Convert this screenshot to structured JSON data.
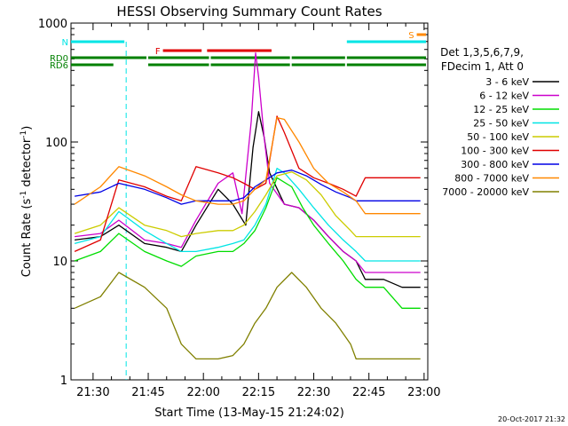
{
  "chart_data": {
    "type": "line",
    "title": "HESSI Observing Summary Count Rates",
    "xlabel": "Start Time (13-May-15 21:24:02)",
    "ylabel_main": "Count Rate (s",
    "ylabel_sup1": "-1",
    "ylabel_mid": " detector",
    "ylabel_sup2": "-1",
    "ylabel_end": ")",
    "y_scale": "log",
    "ylim": [
      1,
      1000
    ],
    "xlim_minutes": [
      0,
      97
    ],
    "y_ticks": [
      {
        "label": "1",
        "value": 1
      },
      {
        "label": "10",
        "value": 10
      },
      {
        "label": "100",
        "value": 100
      },
      {
        "label": "1000",
        "value": 1000
      }
    ],
    "x_ticks": [
      {
        "label": "21:30",
        "minutes": 6
      },
      {
        "label": "21:45",
        "minutes": 21
      },
      {
        "label": "22:00",
        "minutes": 36
      },
      {
        "label": "22:15",
        "minutes": 51
      },
      {
        "label": "22:30",
        "minutes": 66
      },
      {
        "label": "22:45",
        "minutes": 81
      },
      {
        "label": "23:00",
        "minutes": 96
      }
    ],
    "legend_header": [
      "Det 1,3,5,6,7,9,",
      "FDecim 1, Att 0"
    ],
    "series": [
      {
        "name": "3 - 6 keV",
        "color": "#000000",
        "x": [
          1,
          8,
          13,
          20,
          26,
          30,
          34,
          40,
          44,
          47.5,
          49.5,
          51,
          52.5,
          54,
          58,
          62,
          66,
          70,
          74,
          77.5,
          80,
          85,
          90,
          95
        ],
        "y": [
          15,
          16,
          20,
          14,
          13,
          12,
          20,
          40,
          30,
          20,
          90,
          180,
          110,
          55,
          30,
          28,
          22,
          16,
          12,
          10,
          7,
          7,
          6,
          6
        ]
      },
      {
        "name": "6 - 12 keV",
        "color": "#cc00cc",
        "x": [
          1,
          8,
          13,
          20,
          26,
          30,
          34,
          40,
          44,
          46.5,
          49,
          50.2,
          51,
          52.5,
          54,
          58,
          62,
          66,
          70,
          74,
          77.5,
          80,
          85,
          90,
          95
        ],
        "y": [
          16,
          17,
          22,
          15,
          14,
          13,
          22,
          45,
          55,
          25,
          150,
          560,
          350,
          110,
          45,
          30,
          28,
          22,
          16,
          12,
          10,
          8,
          8,
          8,
          8
        ]
      },
      {
        "name": "12 - 25 keV",
        "color": "#00dd00",
        "x": [
          1,
          8,
          13,
          20,
          26,
          30,
          34,
          40,
          44,
          47,
          50,
          53,
          56,
          60,
          63,
          66,
          70,
          74,
          77.5,
          80,
          85,
          90,
          95
        ],
        "y": [
          10,
          12,
          17,
          12,
          10,
          9,
          11,
          12,
          12,
          14,
          18,
          28,
          50,
          42,
          28,
          20,
          14,
          10,
          7,
          6,
          6,
          4,
          4
        ]
      },
      {
        "name": "25 - 50 keV",
        "color": "#00e5e5",
        "x": [
          1,
          8,
          13,
          20,
          26,
          30,
          34,
          40,
          44,
          47,
          50,
          53,
          56,
          58,
          62,
          66,
          70,
          74,
          77.5,
          80,
          85,
          90,
          95
        ],
        "y": [
          14,
          16,
          26,
          18,
          14,
          12,
          12,
          13,
          14,
          15,
          20,
          30,
          60,
          55,
          40,
          28,
          20,
          15,
          12,
          10,
          10,
          10,
          10
        ]
      },
      {
        "name": "50 - 100 keV",
        "color": "#cccc00",
        "x": [
          1,
          8,
          13,
          20,
          26,
          30,
          34,
          40,
          44,
          47,
          50,
          53,
          56,
          60,
          64,
          68,
          72,
          76,
          77.5,
          80,
          85,
          90,
          95
        ],
        "y": [
          17,
          20,
          28,
          20,
          18,
          16,
          17,
          18,
          18,
          20,
          26,
          36,
          52,
          56,
          48,
          36,
          24,
          18,
          16,
          16,
          16,
          16,
          16
        ]
      },
      {
        "name": "100 - 300 keV",
        "color": "#e00000",
        "x": [
          1,
          8,
          13,
          20,
          26,
          30,
          34,
          40,
          44,
          47,
          50,
          53,
          56,
          58,
          62,
          66,
          70,
          74,
          77.5,
          80,
          85,
          90,
          95
        ],
        "y": [
          12,
          15,
          48,
          42,
          35,
          32,
          62,
          55,
          50,
          45,
          40,
          45,
          165,
          120,
          60,
          50,
          45,
          40,
          35,
          50,
          50,
          50,
          50
        ]
      },
      {
        "name": "300 - 800 keV",
        "color": "#0000e5",
        "x": [
          1,
          8,
          13,
          20,
          26,
          30,
          34,
          40,
          44,
          47,
          50,
          53,
          56,
          60,
          64,
          68,
          72,
          76,
          77.5,
          80,
          85,
          90,
          95
        ],
        "y": [
          35,
          38,
          45,
          40,
          34,
          30,
          32,
          32,
          32,
          34,
          42,
          48,
          55,
          58,
          52,
          44,
          38,
          34,
          32,
          32,
          32,
          32,
          32
        ]
      },
      {
        "name": "800 - 7000 keV",
        "color": "#ff8800",
        "x": [
          1,
          8,
          13,
          20,
          26,
          30,
          34,
          40,
          44,
          47,
          50,
          53,
          56,
          58,
          62,
          66,
          70,
          74,
          77.5,
          80,
          85,
          90,
          95
        ],
        "y": [
          30,
          42,
          62,
          52,
          42,
          36,
          32,
          30,
          30,
          32,
          40,
          48,
          160,
          155,
          100,
          60,
          45,
          38,
          32,
          25,
          25,
          25,
          25
        ]
      },
      {
        "name": "7000 - 20000 keV",
        "color": "#808000",
        "x": [
          1,
          8,
          13,
          20,
          26,
          30,
          34,
          40,
          44,
          47,
          50,
          53,
          56,
          60,
          64,
          68,
          72,
          76,
          77.5,
          80,
          85,
          90,
          95
        ],
        "y": [
          4,
          5,
          8,
          6,
          4,
          2,
          1.5,
          1.5,
          1.6,
          2,
          3,
          4,
          6,
          8,
          6,
          4,
          3,
          2,
          1.5,
          1.5,
          1.5,
          1.5,
          1.5
        ]
      }
    ],
    "state_bars": [
      {
        "label": "N",
        "color": "#00e5e5",
        "segments": [
          [
            0,
            15
          ],
          [
            75,
            97
          ]
        ],
        "level": 1,
        "vline_minutes": 15
      },
      {
        "label": "RD0",
        "color": "#008000",
        "segments": [
          [
            0,
            21
          ],
          [
            21,
            38
          ],
          [
            38,
            60
          ],
          [
            60,
            75
          ],
          [
            75,
            97
          ]
        ],
        "level": 2
      },
      {
        "label": "RD6",
        "color": "#008000",
        "segments": [
          [
            0,
            12
          ],
          [
            21,
            38
          ],
          [
            38,
            60
          ],
          [
            60,
            75
          ],
          [
            75,
            97
          ]
        ],
        "level": 3
      },
      {
        "label": "F",
        "color": "#e00000",
        "segments": [
          [
            25,
            36
          ],
          [
            37,
            55
          ]
        ],
        "level": 1.5
      },
      {
        "label": "S",
        "color": "#ff8800",
        "segments": [
          [
            94,
            97
          ]
        ],
        "level": 0.5
      }
    ],
    "grid": false,
    "legend_position": "right"
  },
  "footer": {
    "timestamp": "20-Oct-2017 21:32"
  }
}
